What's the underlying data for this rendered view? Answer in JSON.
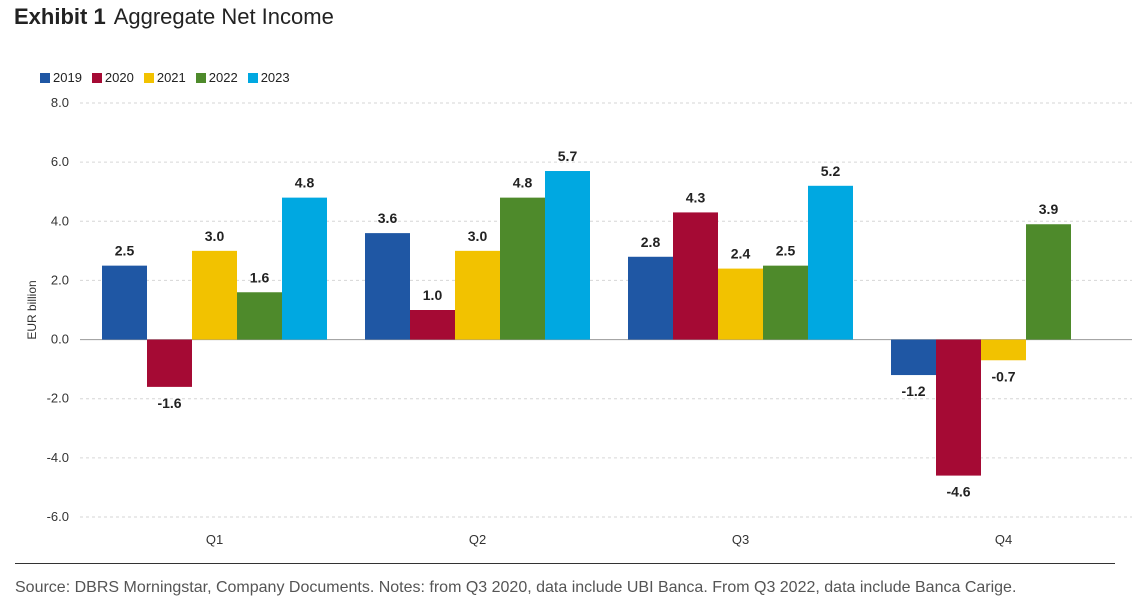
{
  "header": {
    "exhibit": "Exhibit 1",
    "title": "Aggregate Net Income"
  },
  "footer": {
    "source": "Source: DBRS Morningstar, Company Documents. Notes: from Q3 2020, data include UBI Banca. From Q3 2022, data include Banca Carige."
  },
  "chart_data": {
    "type": "bar",
    "title": "Aggregate Net Income",
    "ylabel": "EUR billion",
    "xlabel": "",
    "categories": [
      "Q1",
      "Q2",
      "Q3",
      "Q4"
    ],
    "ylim": [
      -6,
      8
    ],
    "yticks": [
      "8.0",
      "6.0",
      "4.0",
      "2.0",
      "0.0",
      "-2.0",
      "-4.0",
      "-6.0"
    ],
    "grid": true,
    "legend_position": "top-left",
    "series": [
      {
        "name": "2019",
        "color": "#1f57a4",
        "values": [
          2.5,
          3.6,
          2.8,
          -1.2
        ],
        "labels": [
          "2.5",
          "3.6",
          "2.8",
          "-1.2"
        ]
      },
      {
        "name": "2020",
        "color": "#a50a34",
        "values": [
          -1.6,
          1.0,
          4.3,
          -4.6
        ],
        "labels": [
          "-1.6",
          "1.0",
          "4.3",
          "-4.6"
        ]
      },
      {
        "name": "2021",
        "color": "#f2c200",
        "values": [
          3.0,
          3.0,
          2.4,
          -0.7
        ],
        "labels": [
          "3.0",
          "3.0",
          "2.4",
          "-0.7"
        ]
      },
      {
        "name": "2022",
        "color": "#4e8a2b",
        "values": [
          1.6,
          4.8,
          2.5,
          3.9
        ],
        "labels": [
          "1.6",
          "4.8",
          "2.5",
          "3.9"
        ]
      },
      {
        "name": "2023",
        "color": "#00a8e1",
        "values": [
          4.8,
          5.7,
          5.2,
          null
        ],
        "labels": [
          "4.8",
          "5.7",
          "5.2",
          null
        ]
      }
    ]
  }
}
